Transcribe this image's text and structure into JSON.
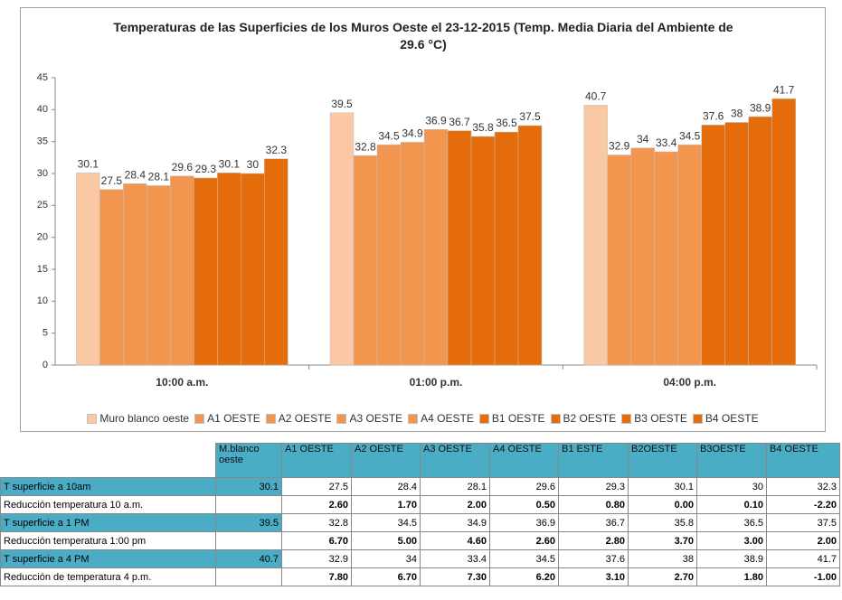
{
  "chart_data": {
    "type": "bar",
    "title": "Temperaturas de las Superficies de los Muros Oeste el  23-12-2015  (Temp. Media Diaria del Ambiente  de 29.6 °C)",
    "categories": [
      "10:00 a.m.",
      "01:00 p.m.",
      "04:00 p.m."
    ],
    "series": [
      {
        "name": "Muro blanco oeste",
        "color": "#fac8a4",
        "values": [
          30.1,
          39.5,
          40.7
        ]
      },
      {
        "name": "A1 OESTE",
        "color": "#f2964f",
        "values": [
          27.5,
          32.8,
          32.9
        ]
      },
      {
        "name": "A2 OESTE",
        "color": "#f2964f",
        "values": [
          28.4,
          34.5,
          34
        ]
      },
      {
        "name": "A3 OESTE",
        "color": "#f2964f",
        "values": [
          28.1,
          34.9,
          33.4
        ]
      },
      {
        "name": "A4 OESTE",
        "color": "#f2964f",
        "values": [
          29.6,
          36.9,
          34.5
        ]
      },
      {
        "name": "B1  OESTE",
        "color": "#e46c0a",
        "values": [
          29.3,
          36.7,
          37.6
        ]
      },
      {
        "name": "B2 OESTE",
        "color": "#e46c0a",
        "values": [
          30.1,
          35.8,
          38
        ]
      },
      {
        "name": "B3 OESTE",
        "color": "#e46c0a",
        "values": [
          30,
          36.5,
          38.9
        ]
      },
      {
        "name": "B4 OESTE",
        "color": "#e46c0a",
        "values": [
          32.3,
          37.5,
          41.7
        ]
      }
    ],
    "ylim": [
      0,
      45
    ],
    "yticks": [
      0,
      5,
      10,
      15,
      20,
      25,
      30,
      35,
      40,
      45
    ],
    "legend": "bottom"
  },
  "table": {
    "header": [
      null,
      "M.blanco oeste",
      "A1 OESTE",
      "A2 OESTE",
      "A3 OESTE",
      "A4 OESTE",
      "B1  ESTE",
      "B2OESTE",
      "B3OESTE",
      "B4 OESTE"
    ],
    "rows": [
      [
        "T superficie a  10am",
        "30.1",
        "27.5",
        "28.4",
        "28.1",
        "29.6",
        "29.3",
        "30.1",
        "30",
        "32.3"
      ],
      [
        "Reducción temperatura 10 a.m.",
        null,
        "2.60",
        "1.70",
        "2.00",
        "0.50",
        "0.80",
        "0.00",
        "0.10",
        "-2.20"
      ],
      [
        "T superficie a  1 PM",
        "39.5",
        "32.8",
        "34.5",
        "34.9",
        "36.9",
        "36.7",
        "35.8",
        "36.5",
        "37.5"
      ],
      [
        "Reducción temperatura 1:00 pm",
        null,
        "6.70",
        "5.00",
        "4.60",
        "2.60",
        "2.80",
        "3.70",
        "3.00",
        "2.00"
      ],
      [
        "T superficie a  4 PM",
        "40.7",
        "32.9",
        "34",
        "33.4",
        "34.5",
        "37.6",
        "38",
        "38.9",
        "41.7"
      ],
      [
        "Reducción de temperatura 4 p.m.",
        null,
        "7.80",
        "6.70",
        "7.30",
        "6.20",
        "3.10",
        "2.70",
        "1.80",
        "-1.00"
      ]
    ]
  }
}
